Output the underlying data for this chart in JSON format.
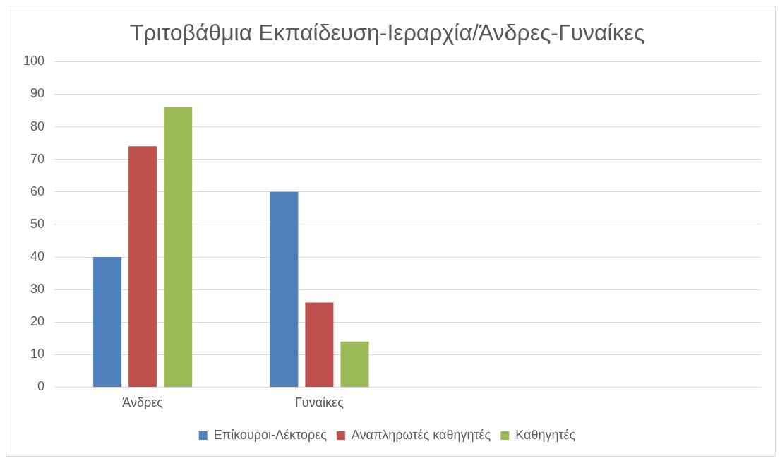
{
  "chart_data": {
    "type": "bar",
    "title": "Τριτοβάθμια Εκπαίδευση-Ιεραρχία/Άνδρες-Γυναίκες",
    "categories": [
      "Άνδρες",
      "Γυναίκες",
      null,
      null
    ],
    "series": [
      {
        "name": "Επίκουροι-Λέκτορες",
        "color": "#4f81bd",
        "values": [
          40,
          60,
          null,
          null
        ]
      },
      {
        "name": "Αναπληρωτές καθηγητές",
        "color": "#c0504d",
        "values": [
          74,
          26,
          null,
          null
        ]
      },
      {
        "name": "Καθηγητές",
        "color": "#9bbb59",
        "values": [
          86,
          14,
          null,
          null
        ]
      }
    ],
    "ylim": [
      0,
      100
    ],
    "yticks": [
      0,
      10,
      20,
      30,
      40,
      50,
      60,
      70,
      80,
      90,
      100
    ],
    "grid": "y",
    "legend": "bottom"
  }
}
